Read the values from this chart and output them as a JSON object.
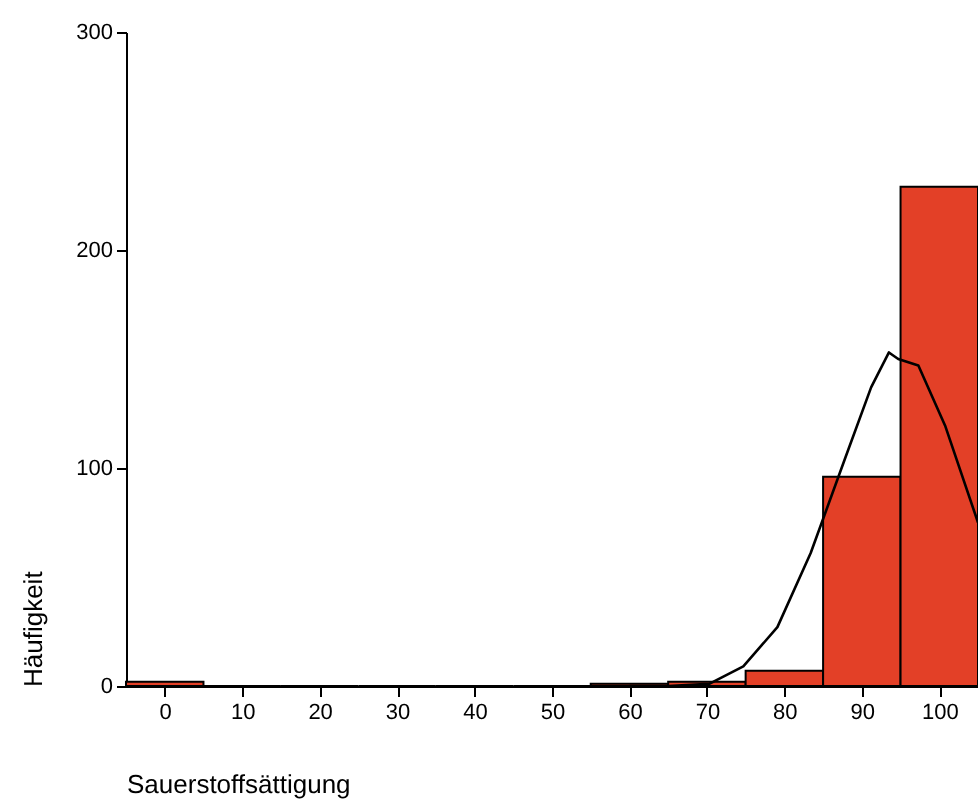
{
  "chart_data": {
    "type": "histogram",
    "xlabel": "Sauerstoffsättigung",
    "ylabel": "Häufigkeit",
    "bins": [
      -5,
      5,
      15,
      25,
      35,
      45,
      55,
      65,
      75,
      85,
      95,
      105
    ],
    "values": [
      2,
      0,
      0,
      0,
      0,
      0,
      1,
      2,
      7,
      96,
      229
    ],
    "color": "#e34027",
    "series": [
      {
        "type": "line",
        "color": "#000000",
        "x": [
          60,
          65,
          70.3,
          74.7,
          79.1,
          83.4,
          87.8,
          91.2,
          93.5,
          94.7,
          97.3,
          100.8,
          105
        ],
        "values": [
          0,
          0,
          1,
          9,
          27,
          61,
          104,
          137,
          153,
          150,
          147,
          119,
          75
        ]
      }
    ],
    "xlim": [
      -5,
      105
    ],
    "xticks": [
      0,
      10,
      20,
      30,
      40,
      50,
      60,
      70,
      80,
      90,
      100
    ],
    "ylim": [
      0,
      300
    ],
    "yticks": [
      0,
      100,
      200,
      300
    ],
    "grid": false
  }
}
